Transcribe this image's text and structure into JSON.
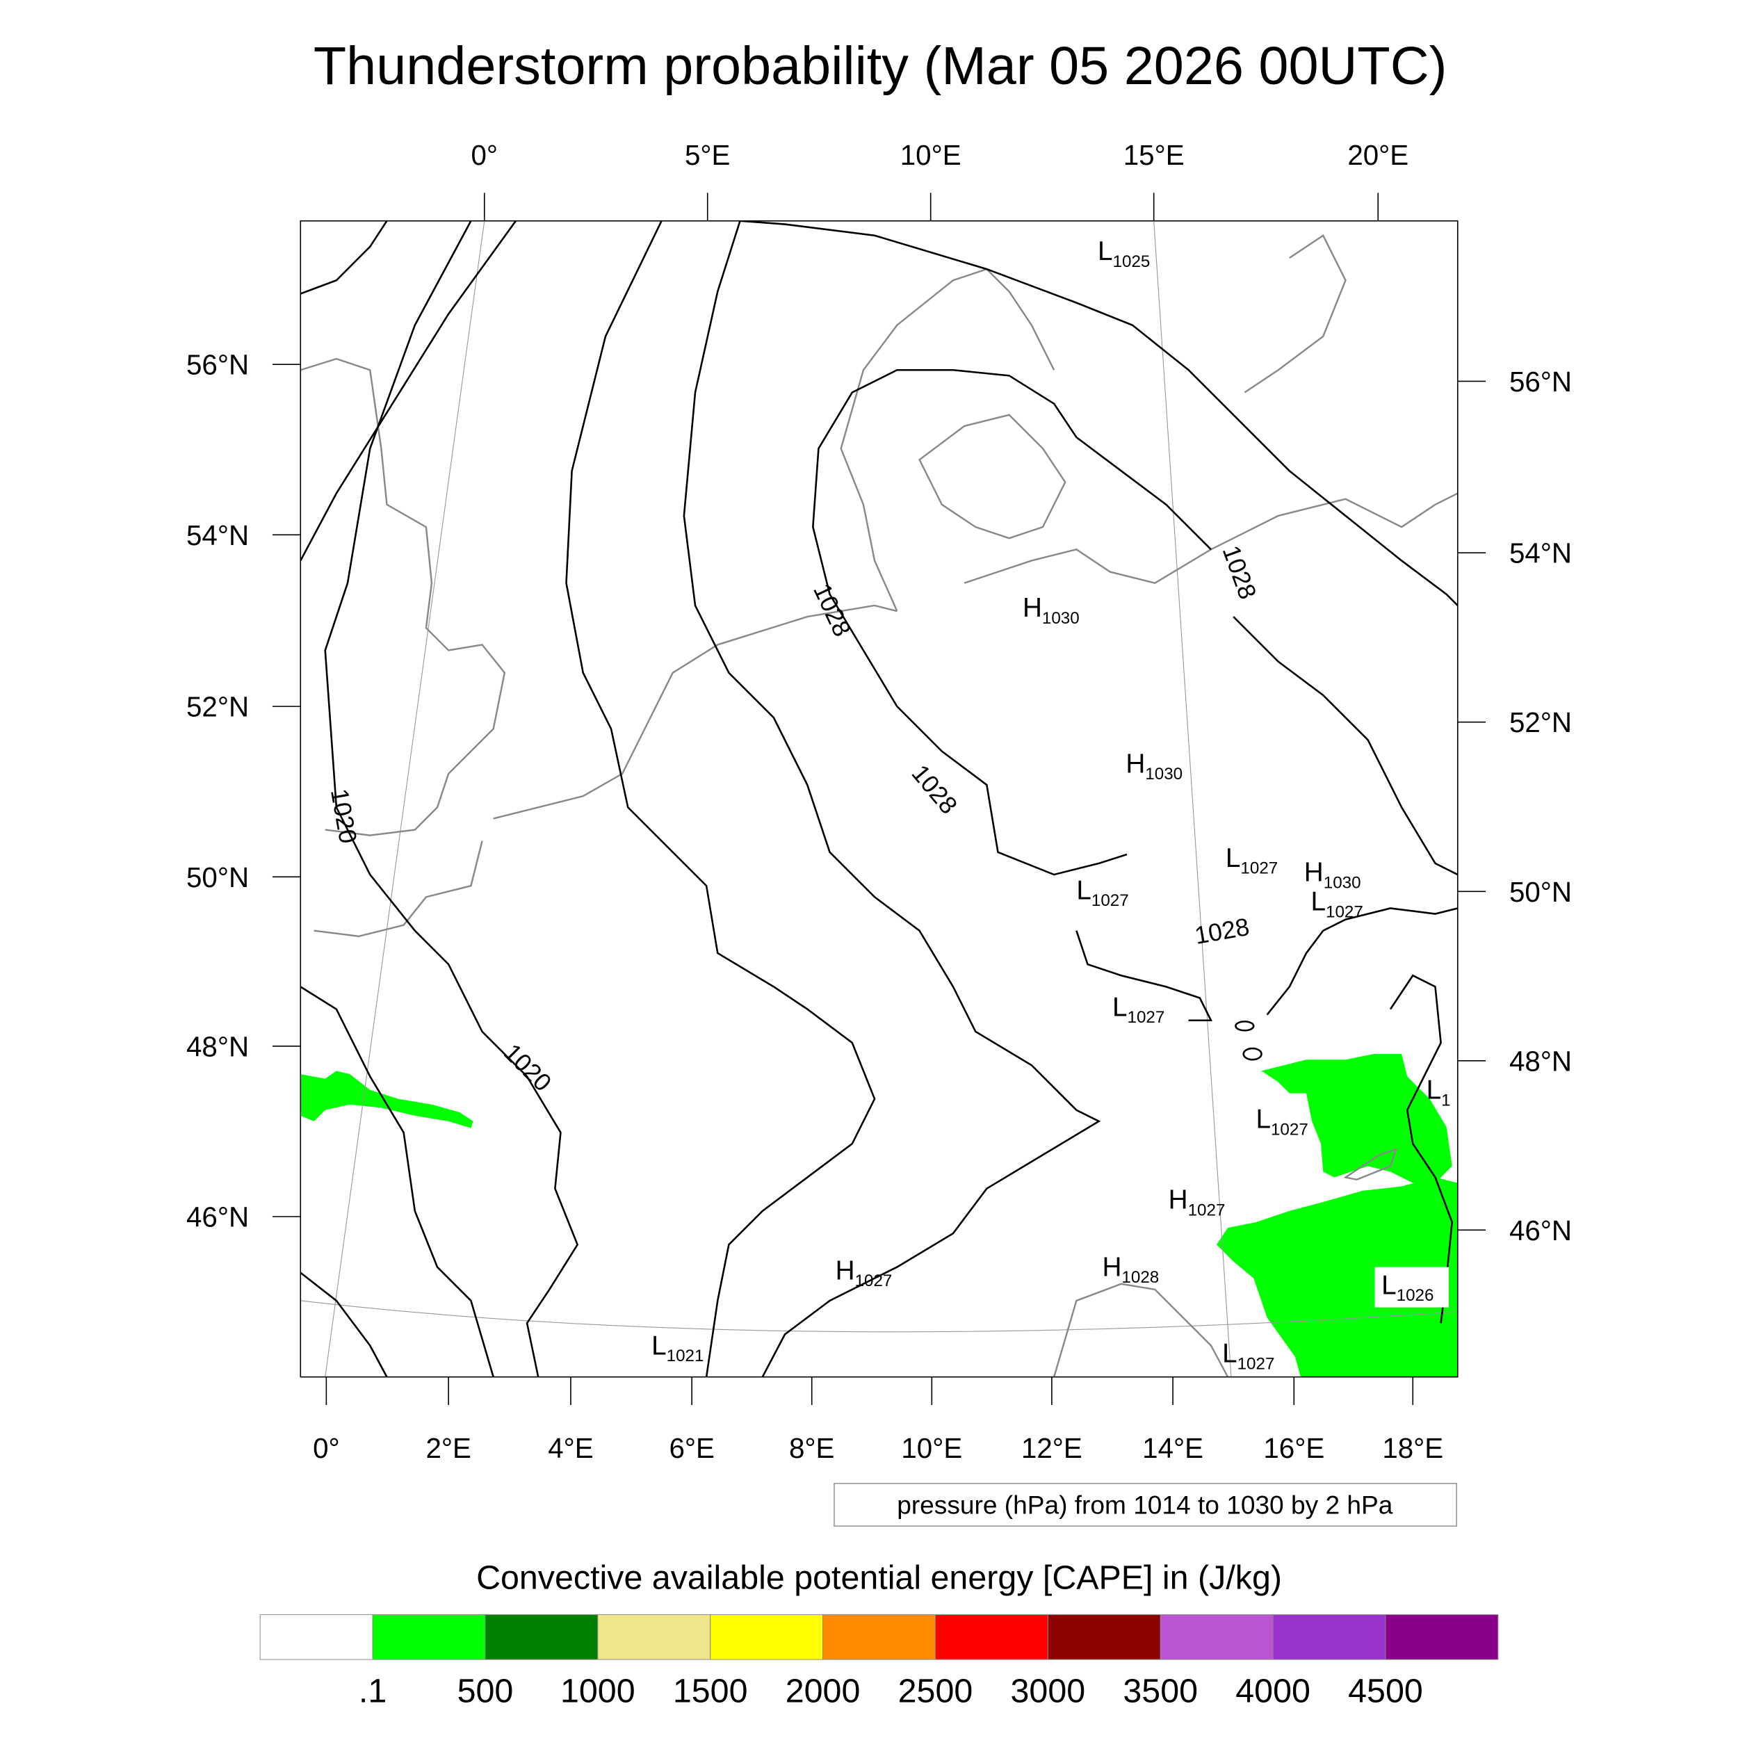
{
  "title": "Thunderstorm probability (Mar 05 2026 00UTC)",
  "chart_data": {
    "type": "heatmap",
    "title": "Thunderstorm probability (Mar 05 2026 00UTC)",
    "map_projection": "Lambert conformal",
    "top_lon_ticks": [
      "0°",
      "5°E",
      "10°E",
      "15°E",
      "20°E"
    ],
    "bottom_lon_ticks": [
      "0°",
      "2°E",
      "4°E",
      "6°E",
      "8°E",
      "10°E",
      "12°E",
      "14°E",
      "16°E",
      "18°E"
    ],
    "left_lat_ticks": [
      "56°N",
      "54°N",
      "52°N",
      "50°N",
      "48°N",
      "46°N"
    ],
    "right_lat_ticks": [
      "56°N",
      "54°N",
      "52°N",
      "50°N",
      "48°N",
      "46°N"
    ],
    "contour_info": "pressure (hPa) from 1014 to 1030 by 2 hPa",
    "contour_labels": [
      "1020",
      "1020",
      "1028",
      "1028",
      "1028",
      "1028"
    ],
    "pressure_centers": [
      {
        "type": "L",
        "value": "1025"
      },
      {
        "type": "H",
        "value": "1030"
      },
      {
        "type": "H",
        "value": "1030"
      },
      {
        "type": "L",
        "value": "1027"
      },
      {
        "type": "H",
        "value": "1030"
      },
      {
        "type": "L",
        "value": "1027"
      },
      {
        "type": "L",
        "value": "1027"
      },
      {
        "type": "L",
        "value": "1027"
      },
      {
        "type": "L",
        "value": "1027"
      },
      {
        "type": "L",
        "value": "1"
      },
      {
        "type": "H",
        "value": "1027"
      },
      {
        "type": "H",
        "value": "1028"
      },
      {
        "type": "H",
        "value": "1027"
      },
      {
        "type": "L",
        "value": "1026"
      },
      {
        "type": "L",
        "value": "1021"
      },
      {
        "type": "L",
        "value": "1027"
      }
    ],
    "colorbar": {
      "title": "Convective available potential energy [CAPE] in (J/kg)",
      "labels": [
        ".1",
        "500",
        "1000",
        "1500",
        "2000",
        "2500",
        "3000",
        "3500",
        "4000",
        "4500"
      ],
      "colors": [
        "#ffffff",
        "#00ff00",
        "#008000",
        "#f0e68c",
        "#ffff00",
        "#ff8c00",
        "#ff0000",
        "#8b0000",
        "#ba55d3",
        "#9932cc",
        "#8b008b"
      ]
    },
    "cape_regions": [
      "western France strip 0.1-500",
      "Hungary/Croatia/Slovenia 0.1-500"
    ]
  }
}
